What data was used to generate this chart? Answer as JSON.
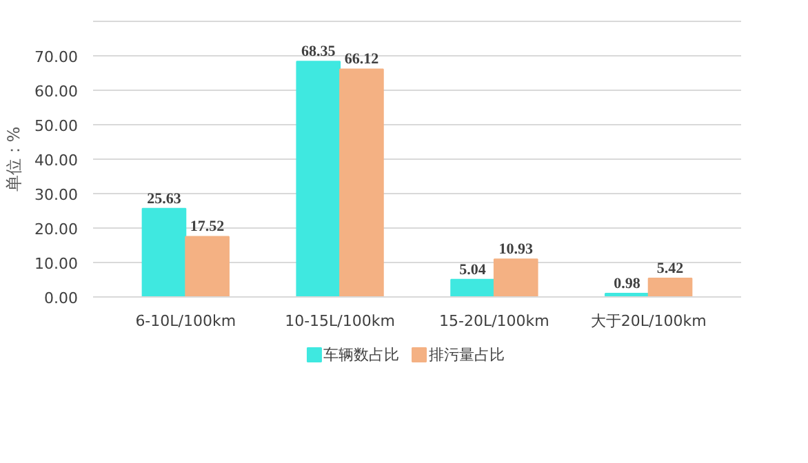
{
  "chart_data": {
    "type": "bar",
    "ylabel": "单位：%",
    "categories": [
      "6-10L/100km",
      "10-15L/100km",
      "15-20L/100km",
      "大于20L/100km"
    ],
    "series": [
      {
        "name": "车辆数占比",
        "color": "#3fe8e0",
        "values": [
          25.63,
          68.35,
          5.04,
          0.98
        ]
      },
      {
        "name": "排污量占比",
        "color": "#f4b183",
        "values": [
          17.52,
          66.12,
          10.93,
          5.42
        ]
      }
    ],
    "ylim": [
      0,
      80
    ],
    "yticks": [
      {
        "value": 0,
        "label": "0.00"
      },
      {
        "value": 10,
        "label": "10.00"
      },
      {
        "value": 20,
        "label": "20.00"
      },
      {
        "value": 30,
        "label": "30.00"
      },
      {
        "value": 40,
        "label": "40.00"
      },
      {
        "value": 50,
        "label": "50.00"
      },
      {
        "value": 60,
        "label": "60.00"
      },
      {
        "value": 70,
        "label": "70.00"
      },
      {
        "value": 80,
        "label": null
      }
    ],
    "grid": "y",
    "legend": "bottom",
    "data_labels": true
  }
}
